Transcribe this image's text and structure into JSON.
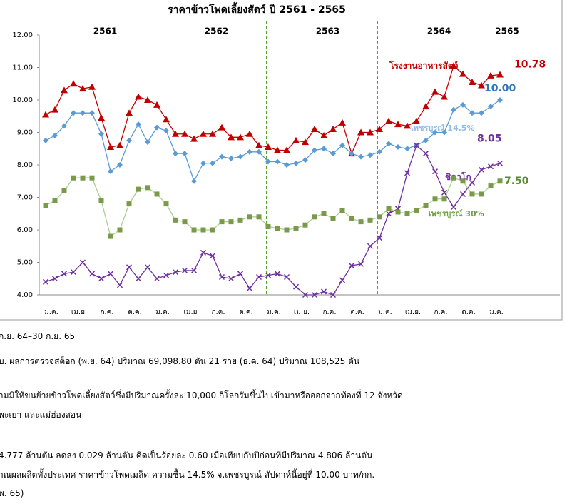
{
  "chart_data": {
    "type": "line",
    "title": "ราคาข้าวโพดเลี้ยงสัตว์ ปี 2561 - 2565",
    "year_labels": [
      "2561",
      "2562",
      "2563",
      "2564",
      "2565"
    ],
    "categories": [
      "ม.ค.",
      null,
      null,
      "เม.ย.",
      null,
      null,
      "ก.ค.",
      null,
      null,
      "ต.ค.",
      null,
      null,
      "ม.ค.",
      null,
      null,
      "เม.ย",
      null,
      null,
      "ก.ค.",
      null,
      null,
      "ต.ค.",
      null,
      null,
      "ม.ค.",
      null,
      null,
      "เม.ย.",
      null,
      null,
      "ก.ค.",
      null,
      null,
      "ต.ค.",
      null,
      null,
      "ม.ค.",
      null,
      null,
      "เม.ย.",
      null,
      null,
      "ก.ค.",
      null,
      null,
      "ต.ค.",
      null,
      null,
      "ม.ค.",
      null
    ],
    "ylim": [
      4,
      12
    ],
    "yticks": [
      {
        "value": 4,
        "label": "4.00"
      },
      {
        "value": 5,
        "label": "5.00"
      },
      {
        "value": 6,
        "label": "6.00"
      },
      {
        "value": 7,
        "label": "7.00"
      },
      {
        "value": 8,
        "label": "8.00"
      },
      {
        "value": 9,
        "label": "9.00"
      },
      {
        "value": 10,
        "label": "10.00"
      },
      {
        "value": 11,
        "label": "11.00"
      },
      {
        "value": 12,
        "label": "12.00"
      }
    ],
    "grid": false,
    "series": [
      {
        "name": "โรงงานอาหารสัตว์",
        "color": "#c00000",
        "marker": "triangle",
        "values": [
          9.55,
          9.7,
          10.3,
          10.5,
          10.35,
          10.4,
          9.45,
          8.55,
          8.6,
          9.6,
          10.1,
          10.0,
          9.85,
          9.4,
          8.95,
          8.95,
          8.8,
          8.95,
          8.95,
          9.15,
          8.85,
          8.85,
          8.95,
          8.6,
          8.55,
          8.45,
          8.45,
          8.75,
          8.7,
          9.1,
          8.9,
          9.1,
          9.3,
          8.35,
          9.0,
          9.0,
          9.1,
          9.35,
          9.25,
          9.2,
          9.35,
          9.8,
          10.25,
          10.1,
          11.05,
          10.8,
          10.55,
          10.45,
          10.75,
          10.78
        ],
        "end_label": "10.78"
      },
      {
        "name": "เพชรบูรณ์ 14.5%",
        "color": "#5b9bd5",
        "marker": "diamond",
        "values": [
          8.75,
          8.9,
          9.2,
          9.6,
          9.6,
          9.6,
          8.95,
          7.8,
          8.0,
          8.75,
          9.25,
          8.7,
          9.15,
          9.05,
          8.35,
          8.35,
          7.5,
          8.05,
          8.05,
          8.25,
          8.2,
          8.25,
          8.4,
          8.4,
          8.1,
          8.1,
          8.0,
          8.05,
          8.15,
          8.45,
          8.5,
          8.35,
          8.6,
          8.35,
          8.25,
          8.3,
          8.4,
          8.65,
          8.55,
          8.5,
          8.6,
          8.75,
          9.0,
          9.0,
          9.7,
          9.85,
          9.6,
          9.6,
          9.8,
          10.0
        ],
        "end_label": "10.00"
      },
      {
        "name": "ชิคาโก",
        "color": "#7030a0",
        "marker": "cross",
        "values": [
          4.4,
          4.5,
          4.65,
          4.7,
          5.0,
          4.65,
          4.5,
          4.65,
          4.3,
          4.85,
          4.5,
          4.85,
          4.5,
          4.6,
          4.7,
          4.75,
          4.75,
          5.3,
          5.2,
          4.55,
          4.5,
          4.65,
          4.2,
          4.55,
          4.6,
          4.65,
          4.55,
          4.25,
          4.0,
          4.0,
          4.1,
          4.0,
          4.45,
          4.9,
          4.95,
          5.5,
          5.75,
          6.5,
          6.65,
          7.75,
          8.6,
          8.35,
          7.8,
          7.15,
          6.7,
          7.1,
          7.45,
          7.85,
          7.95,
          8.05
        ],
        "end_label": "8.05"
      },
      {
        "name": "เพชรบูรณ์ 30%",
        "color": "#70ad47",
        "marker": "square",
        "values": [
          6.75,
          6.9,
          7.2,
          7.6,
          7.6,
          7.6,
          6.9,
          5.8,
          6.0,
          6.8,
          7.25,
          7.3,
          7.1,
          6.8,
          6.3,
          6.25,
          6.0,
          6.0,
          6.0,
          6.25,
          6.25,
          6.3,
          6.4,
          6.4,
          6.1,
          6.05,
          6.0,
          6.05,
          6.15,
          6.4,
          6.5,
          6.35,
          6.6,
          6.35,
          6.25,
          6.3,
          6.4,
          6.65,
          6.55,
          6.5,
          6.6,
          6.75,
          6.95,
          6.95,
          7.6,
          7.5,
          7.1,
          7.1,
          7.35,
          7.5
        ],
        "end_label": "7.50"
      }
    ]
  },
  "text_lines": [
    "ก.ย. 64–30 ก.ย. 65",
    "บ. ผลการตรวจสต็อก (พ.ย. 64) ปริมาณ 69,098.80 ตัน 21 ราย (ธ.ค. 64) ปริมาณ 108,525 ตัน",
    "ห้ามมิให้ขนย้ายข้าวโพดเลี้ยงสัตว์ซึ่งมีปริมาณครั้งละ 10,000 กิโลกรัมขึ้นไปเข้ามาหรือออกจากท้องที่ 12 จังหวัด",
    "พะเยา และแม่ฮ่องสอน",
    "4.777 ล้านตัน ลดลง 0.029 ล้านตัน คิดเป็นร้อยละ 0.60 เมื่อเทียบกับปีก่อนที่มีปริมาณ 4.806 ล้านตัน",
    "าณผลผลิตทั้งประเทศ ราคาข้าวโพดเมล็ด ความชื้น 14.5% จ.เพชรบูรณ์ สัปดาห์นี้อยู่ที่ 10.00 บาท/กก.",
    "พ. 65)"
  ]
}
